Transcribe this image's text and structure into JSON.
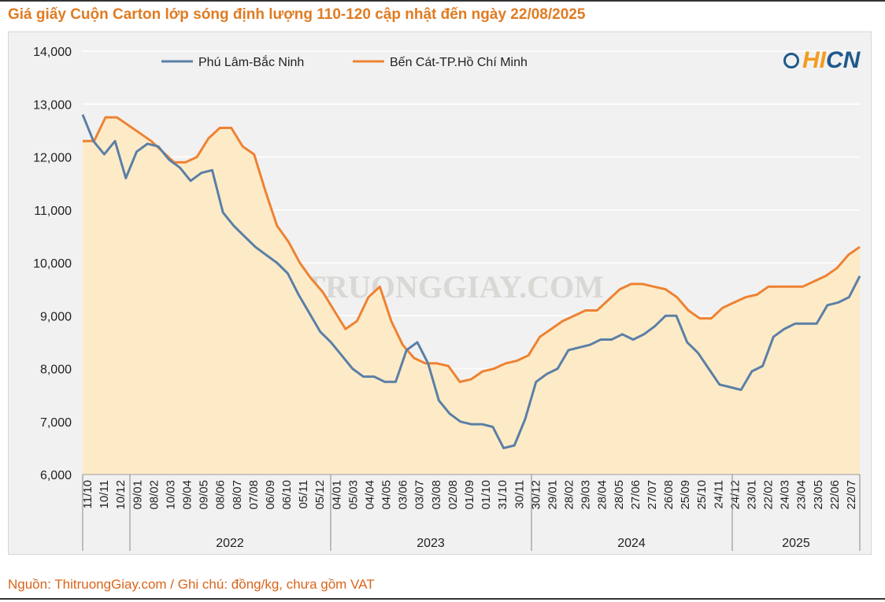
{
  "title": "Giá giấy Cuộn Carton lớp sóng định lượng 110-120 cập nhật đến ngày 22/08/2025",
  "source": "Nguồn: ThitruongGiay.com / Ghi chú: đồng/kg, chưa gồm VAT",
  "watermark": "THITRUONGGIAY.COM",
  "logo": {
    "part1": "HI",
    "part2": "CN"
  },
  "colors": {
    "phu_lam": "#5b7fa6",
    "ben_cat": "#ee8232",
    "fill": "#fdebc8",
    "title": "#e07b22"
  },
  "chart_data": {
    "type": "line",
    "title": "Giá giấy Cuộn Carton lớp sóng định lượng 110-120 cập nhật đến ngày 22/08/2025",
    "ylim": [
      6000,
      14000
    ],
    "y_ticks": [
      6000,
      7000,
      8000,
      9000,
      10000,
      11000,
      12000,
      13000,
      14000
    ],
    "y_tick_labels": [
      "6,000",
      "7,000",
      "8,000",
      "9,000",
      "10,000",
      "11,000",
      "12,000",
      "13,000",
      "14,000"
    ],
    "x_tick_labels": [
      "11/10",
      "10/11",
      "10/12",
      "09/01",
      "08/02",
      "10/03",
      "09/04",
      "09/05",
      "08/06",
      "08/07",
      "07/08",
      "06/09",
      "06/10",
      "05/11",
      "05/12",
      "04/01",
      "05/03",
      "04/04",
      "04/05",
      "03/06",
      "03/07",
      "03/08",
      "02/08",
      "01/09",
      "01/10",
      "31/10",
      "30/11",
      "30/12",
      "29/01",
      "28/02",
      "29/03",
      "28/04",
      "28/05",
      "27/06",
      "27/07",
      "26/08",
      "25/09",
      "25/10",
      "24/11",
      "24/12",
      "23/01",
      "22/02",
      "24/03",
      "23/04",
      "23/05",
      "22/06",
      "22/07"
    ],
    "years": [
      "2022",
      "2023",
      "2024",
      "2025"
    ],
    "grid": "horizontal",
    "legend_position": "top-left",
    "series": [
      {
        "name": "Phú Lâm-Bắc Ninh",
        "values": [
          12800,
          12300,
          12050,
          12300,
          11600,
          12100,
          12250,
          12200,
          11950,
          11800,
          11550,
          11700,
          11750,
          10950,
          10700,
          10500,
          10300,
          10150,
          10000,
          9800,
          9400,
          9050,
          8700,
          8500,
          8250,
          8000,
          7850,
          7850,
          7750,
          7750,
          8350,
          8500,
          8100,
          7400,
          7150,
          7000,
          6950,
          6950,
          6900,
          6500,
          6550,
          7050,
          7750,
          7900,
          8000,
          8350,
          8400,
          8450,
          8550,
          8550,
          8650,
          8550,
          8650,
          8800,
          9000,
          9000,
          8500,
          8300,
          8000,
          7700,
          7650,
          7600,
          7950,
          8050,
          8600,
          8750,
          8850,
          8850,
          8850,
          9200,
          9250,
          9350,
          9750
        ],
        "color": "#5b7fa6"
      },
      {
        "name": "Bến Cát-TP.Hồ Chí Minh",
        "values": [
          12300,
          12300,
          12750,
          12750,
          12600,
          12450,
          12300,
          12100,
          11900,
          11900,
          12000,
          12350,
          12550,
          12550,
          12200,
          12050,
          11350,
          10700,
          10400,
          10000,
          9700,
          9450,
          9100,
          8750,
          8900,
          9350,
          9550,
          8900,
          8450,
          8200,
          8100,
          8100,
          8050,
          7750,
          7800,
          7950,
          8000,
          8100,
          8150,
          8250,
          8600,
          8750,
          8900,
          9000,
          9100,
          9100,
          9300,
          9500,
          9600,
          9600,
          9550,
          9500,
          9350,
          9100,
          8950,
          8950,
          9150,
          9250,
          9350,
          9400,
          9550,
          9550,
          9550,
          9550,
          9650,
          9750,
          9900,
          10150,
          10300
        ],
        "color": "#ee8232"
      }
    ]
  }
}
